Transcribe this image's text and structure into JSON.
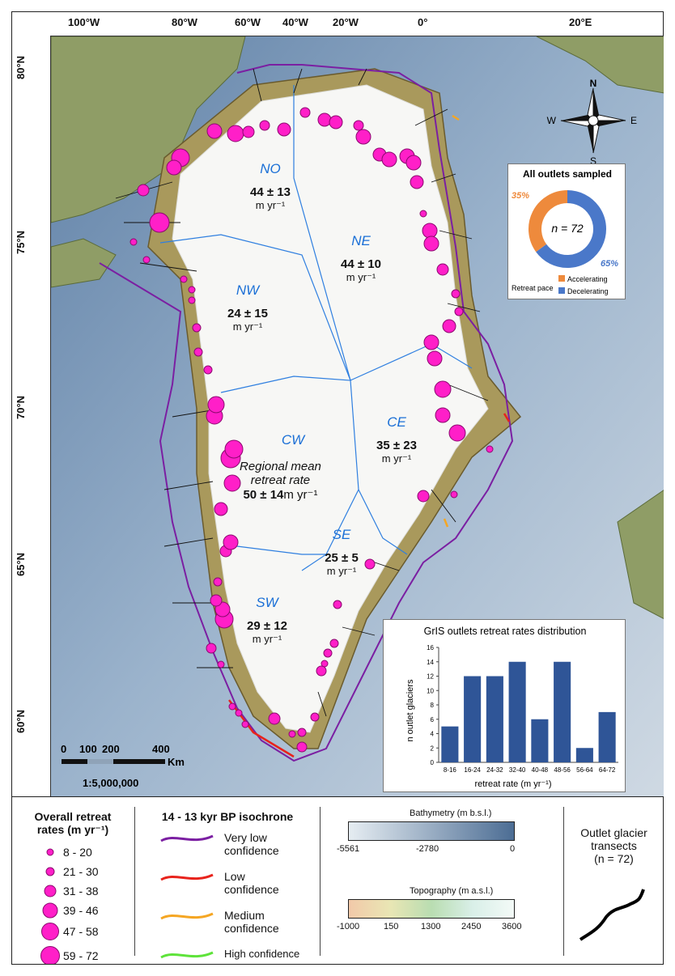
{
  "longitude_labels": [
    "100°W",
    "80°W",
    "60°W",
    "40°W",
    "20°W",
    "0°",
    "20°E"
  ],
  "latitude_labels": [
    "80°N",
    "75°N",
    "70°N",
    "65°N",
    "60°N"
  ],
  "regions": [
    {
      "name": "NO",
      "rate": "44 ± 13",
      "unit": "m yr⁻¹"
    },
    {
      "name": "NE",
      "rate": "44 ± 10",
      "unit": "m yr⁻¹"
    },
    {
      "name": "NW",
      "rate": "24 ± 15",
      "unit": "m yr⁻¹"
    },
    {
      "name": "CW",
      "rate": "",
      "unit": ""
    },
    {
      "name": "CE",
      "rate": "35 ± 23",
      "unit": "m yr⁻¹"
    },
    {
      "name": "SE",
      "rate": "25 ± 5",
      "unit": "m yr⁻¹"
    },
    {
      "name": "SW",
      "rate": "29 ± 12",
      "unit": "m yr⁻¹"
    }
  ],
  "regional_mean": {
    "line1": "Regional mean",
    "line2": "retreat rate",
    "value": "50 ± 14",
    "unit": "m yr⁻¹"
  },
  "compass": {
    "n": "N",
    "s": "S",
    "e": "E",
    "w": "W"
  },
  "donut": {
    "title": "All outlets sampled",
    "center": "n = 72",
    "accelerating_pct": 35,
    "decelerating_pct": 65,
    "accelerating_label": "35%",
    "decelerating_label": "65%",
    "legend_title": "Retreat pace",
    "legend_items": [
      "Accelerating",
      "Decelerating"
    ],
    "colors": {
      "accelerating": "#ee8a3c",
      "decelerating": "#4a78c9"
    }
  },
  "chart_data": {
    "type": "bar",
    "title": "GrIS outlets retreat rates distribution",
    "categories": [
      "8-16",
      "16-24",
      "24-32",
      "32-40",
      "40-48",
      "48-56",
      "56-64",
      "64-72"
    ],
    "values": [
      5,
      12,
      12,
      14,
      6,
      14,
      2,
      7
    ],
    "xlabel": "retreat rate (m yr⁻¹)",
    "ylabel": "n outlet glaciers",
    "ylim": [
      0,
      16
    ],
    "yticks": [
      0,
      2,
      4,
      6,
      8,
      10,
      12,
      14,
      16
    ],
    "bar_color": "#2f5597",
    "grid": false
  },
  "scalebar": {
    "ticks": [
      "0",
      "100",
      "200",
      "400"
    ],
    "unit": "Km",
    "ratio": "1:5,000,000"
  },
  "legend": {
    "retreat_rates": {
      "title_line1": "Overall retreat",
      "title_line2": "rates (m yr⁻¹)",
      "items": [
        "8 - 20",
        "21 - 30",
        "31 - 38",
        "39 - 46",
        "47 - 58",
        "59 - 72"
      ],
      "color": "#ff1fc8"
    },
    "isochrone": {
      "title": "14 - 13 kyr BP isochrone",
      "items": [
        {
          "line1": "Very low",
          "line2": "confidence",
          "color": "#7b1fa2"
        },
        {
          "line1": "Low",
          "line2": "confidence",
          "color": "#e8231c"
        },
        {
          "line1": "Medium",
          "line2": "confidence",
          "color": "#f5a623"
        },
        {
          "line1": "High",
          "line2": "confidence",
          "color": "#5ee33a"
        }
      ]
    },
    "bathymetry": {
      "title": "Bathymetry  (m b.s.l.)",
      "ticks": [
        "-5561",
        "-2780",
        "0"
      ]
    },
    "topography": {
      "title": "Topography  (m a.s.l.)",
      "ticks": [
        "-1000",
        "150",
        "1300",
        "2450",
        "3600"
      ]
    },
    "transects": {
      "line1": "Outlet glacier",
      "line2": "transects",
      "line3": "(n = 72)"
    }
  }
}
